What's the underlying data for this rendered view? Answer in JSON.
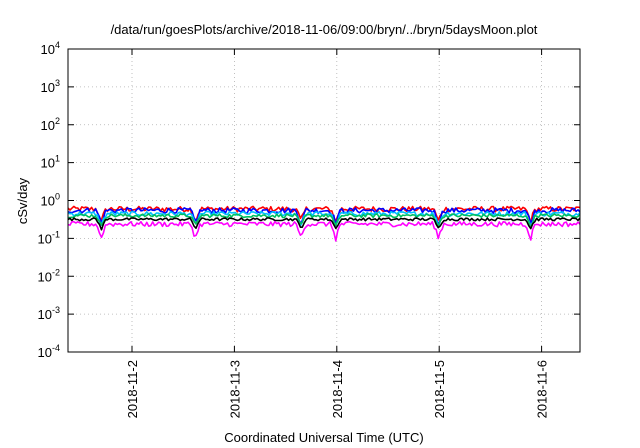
{
  "chart_data": {
    "type": "line",
    "title": "/data/run/goesPlots/archive/2018-11-06/09:00/bryn/../bryn/5daysMoon.plot",
    "xlabel": "Coordinated Universal Time (UTC)",
    "ylabel": "cSv/day",
    "yscale": "log",
    "ylim": [
      0.0001,
      10000
    ],
    "y_ticks": [
      {
        "value": 0.0001,
        "base": "10",
        "exp": "-4"
      },
      {
        "value": 0.001,
        "base": "10",
        "exp": "-3"
      },
      {
        "value": 0.01,
        "base": "10",
        "exp": "-2"
      },
      {
        "value": 0.1,
        "base": "10",
        "exp": "-1"
      },
      {
        "value": 1,
        "base": "10",
        "exp": "0"
      },
      {
        "value": 10,
        "base": "10",
        "exp": "1"
      },
      {
        "value": 100,
        "base": "10",
        "exp": "2"
      },
      {
        "value": 1000,
        "base": "10",
        "exp": "3"
      },
      {
        "value": 10000,
        "base": "10",
        "exp": "4"
      }
    ],
    "xlim": [
      "2018-11-01 09:00",
      "2018-11-06 09:00"
    ],
    "x_ticks": [
      {
        "value": "2018-11-02 00:00",
        "label": "2018-11-2"
      },
      {
        "value": "2018-11-03 00:00",
        "label": "2018-11-3"
      },
      {
        "value": "2018-11-04 00:00",
        "label": "2018-11-4"
      },
      {
        "value": "2018-11-05 00:00",
        "label": "2018-11-5"
      },
      {
        "value": "2018-11-06 00:00",
        "label": "2018-11-6"
      }
    ],
    "grid": true,
    "dip_times": [
      "2018-11-01 16:48",
      "2018-11-02 14:52",
      "2018-11-03 15:36",
      "2018-11-03 23:45",
      "2018-11-04 23:50",
      "2018-11-05 21:25"
    ],
    "series": [
      {
        "color": "#ff0000",
        "base": 0.6,
        "noise": 0.11,
        "dip": 0.45
      },
      {
        "color": "#0000ff",
        "base": 0.55,
        "noise": 0.1,
        "dip": 0.45
      },
      {
        "color": "#00c0ff",
        "base": 0.45,
        "noise": 0.07,
        "dip": 0.45
      },
      {
        "color": "#00c060",
        "base": 0.4,
        "noise": 0.05,
        "dip": 0.5
      },
      {
        "color": "#000000",
        "base": 0.32,
        "noise": 0.03,
        "dip": 0.55
      },
      {
        "color": "#ff00ff",
        "base": 0.24,
        "noise": 0.04,
        "dip": 0.4
      }
    ]
  }
}
